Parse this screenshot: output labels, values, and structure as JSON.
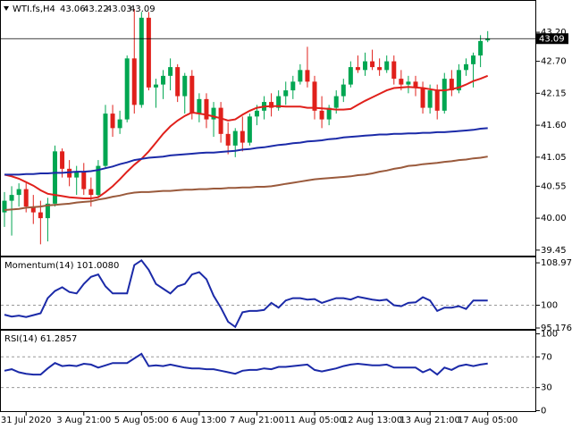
{
  "chart_data": [
    {
      "type": "candlestick",
      "title": "WTI.fs,H4",
      "categories": [
        null,
        null,
        null,
        "31 Jul 2020",
        null,
        null,
        null,
        null,
        null,
        null,
        null,
        "3 Aug 21:00",
        null,
        null,
        null,
        null,
        null,
        null,
        null,
        "5 Aug 05:00",
        null,
        null,
        null,
        null,
        null,
        null,
        null,
        "6 Aug 13:00",
        null,
        null,
        null,
        null,
        null,
        null,
        null,
        "7 Aug 21:00",
        null,
        null,
        null,
        null,
        null,
        null,
        null,
        "11 Aug 05:00",
        null,
        null,
        null,
        null,
        null,
        null,
        null,
        "12 Aug 13:00",
        null,
        null,
        null,
        null,
        null,
        null,
        null,
        "13 Aug 21:00",
        null,
        null,
        null,
        null,
        null,
        null,
        null,
        "17 Aug 05:00"
      ],
      "open": [
        40.1,
        40.3,
        40.4,
        40.5,
        40.2,
        40.1,
        40.0,
        40.25,
        41.15,
        40.85,
        40.7,
        40.8,
        40.5,
        40.4,
        40.9,
        41.8,
        41.55,
        41.7,
        42.75,
        41.95,
        43.45,
        42.25,
        42.3,
        42.45,
        42.6,
        42.1,
        42.45,
        41.8,
        42.05,
        41.7,
        41.9,
        41.45,
        41.25,
        41.5,
        41.3,
        41.75,
        41.85,
        42.0,
        41.9,
        42.1,
        42.2,
        42.35,
        42.55,
        42.35,
        41.85,
        41.7,
        41.9,
        42.1,
        42.3,
        42.6,
        42.55,
        42.7,
        42.6,
        42.55,
        42.7,
        42.4,
        42.3,
        42.35,
        42.25,
        41.9,
        42.2,
        41.85,
        42.4,
        42.2,
        42.55,
        42.65,
        42.8,
        43.06
      ],
      "high": [
        40.45,
        40.55,
        40.6,
        40.6,
        40.4,
        40.3,
        40.35,
        41.25,
        41.2,
        41.0,
        40.9,
        40.95,
        40.7,
        41.0,
        41.95,
        41.95,
        41.85,
        42.8,
        43.6,
        43.55,
        43.55,
        42.4,
        42.55,
        42.75,
        42.65,
        42.5,
        42.55,
        42.15,
        42.15,
        42.0,
        42.0,
        41.65,
        41.55,
        41.75,
        41.8,
        41.95,
        42.1,
        42.15,
        42.2,
        42.35,
        42.45,
        42.65,
        42.95,
        42.45,
        42.1,
        41.95,
        42.2,
        42.4,
        42.7,
        42.8,
        42.85,
        42.9,
        42.75,
        42.8,
        42.8,
        42.55,
        42.45,
        42.45,
        42.35,
        42.3,
        42.3,
        42.5,
        42.55,
        42.65,
        42.75,
        42.85,
        43.15,
        43.22
      ],
      "low": [
        39.85,
        39.7,
        40.2,
        40.1,
        39.9,
        39.55,
        39.6,
        40.2,
        40.7,
        40.55,
        40.4,
        40.4,
        40.2,
        40.35,
        40.85,
        41.4,
        41.45,
        41.65,
        41.8,
        41.9,
        42.2,
        41.9,
        42.05,
        42.2,
        42.0,
        41.8,
        41.7,
        41.65,
        41.55,
        41.4,
        41.3,
        41.1,
        41.05,
        41.15,
        41.25,
        41.6,
        41.7,
        41.75,
        41.85,
        41.95,
        42.05,
        42.3,
        42.25,
        41.7,
        41.55,
        41.6,
        41.8,
        42.0,
        42.25,
        42.5,
        42.45,
        42.55,
        42.45,
        42.5,
        42.3,
        42.2,
        42.15,
        42.1,
        41.8,
        41.8,
        41.7,
        41.8,
        42.1,
        42.15,
        42.45,
        42.25,
        42.6,
        43.03
      ],
      "close": [
        40.3,
        40.4,
        40.5,
        40.2,
        40.1,
        40.0,
        40.25,
        41.15,
        40.85,
        40.7,
        40.8,
        40.5,
        40.4,
        40.9,
        41.8,
        41.55,
        41.7,
        42.75,
        41.95,
        43.45,
        42.25,
        42.3,
        42.45,
        42.6,
        42.1,
        42.45,
        41.8,
        42.05,
        41.7,
        41.9,
        41.45,
        41.25,
        41.5,
        41.3,
        41.75,
        41.85,
        42.0,
        41.9,
        42.1,
        42.2,
        42.35,
        42.55,
        42.35,
        41.85,
        41.7,
        41.9,
        42.1,
        42.3,
        42.6,
        42.55,
        42.7,
        42.6,
        42.55,
        42.7,
        42.4,
        42.3,
        42.35,
        42.25,
        41.9,
        42.2,
        41.85,
        42.4,
        42.2,
        42.55,
        42.65,
        42.8,
        43.05,
        43.09
      ],
      "up_color": "#00a651",
      "down_color": "#e0201b",
      "series": [
        {
          "color": "#e0201b",
          "values": [
            40.75,
            40.72,
            40.68,
            40.62,
            40.56,
            40.48,
            40.42,
            40.4,
            40.38,
            40.36,
            40.35,
            40.34,
            40.34,
            40.36,
            40.45,
            40.55,
            40.67,
            40.8,
            40.92,
            41.02,
            41.15,
            41.3,
            41.45,
            41.58,
            41.68,
            41.76,
            41.82,
            41.8,
            41.78,
            41.75,
            41.72,
            41.68,
            41.7,
            41.78,
            41.85,
            41.9,
            41.92,
            41.93,
            41.93,
            41.92,
            41.92,
            41.92,
            41.9,
            41.9,
            41.89,
            41.88,
            41.87,
            41.87,
            41.88,
            41.95,
            42.02,
            42.08,
            42.14,
            42.2,
            42.24,
            42.25,
            42.26,
            42.25,
            42.24,
            42.22,
            42.2,
            42.2,
            42.22,
            42.25,
            42.3,
            42.36,
            42.4,
            42.45
          ]
        },
        {
          "color": "#1b2aa8",
          "values": [
            40.75,
            40.75,
            40.75,
            40.76,
            40.76,
            40.77,
            40.77,
            40.78,
            40.78,
            40.79,
            40.8,
            40.8,
            40.81,
            40.83,
            40.86,
            40.89,
            40.93,
            40.96,
            41.0,
            41.02,
            41.04,
            41.05,
            41.06,
            41.08,
            41.09,
            41.1,
            41.11,
            41.12,
            41.13,
            41.13,
            41.14,
            41.15,
            41.16,
            41.18,
            41.19,
            41.21,
            41.22,
            41.24,
            41.26,
            41.27,
            41.29,
            41.3,
            41.32,
            41.33,
            41.34,
            41.36,
            41.37,
            41.39,
            41.4,
            41.41,
            41.42,
            41.43,
            41.44,
            41.44,
            41.45,
            41.45,
            41.46,
            41.46,
            41.47,
            41.47,
            41.48,
            41.48,
            41.49,
            41.5,
            41.51,
            41.52,
            41.54,
            41.55
          ]
        },
        {
          "color": "#9a5a3c",
          "values": [
            40.14,
            40.15,
            40.16,
            40.18,
            40.19,
            40.2,
            40.22,
            40.23,
            40.24,
            40.25,
            40.27,
            40.28,
            40.29,
            40.32,
            40.34,
            40.37,
            40.39,
            40.42,
            40.44,
            40.45,
            40.45,
            40.46,
            40.47,
            40.47,
            40.48,
            40.49,
            40.49,
            40.5,
            40.5,
            40.51,
            40.51,
            40.52,
            40.52,
            40.53,
            40.53,
            40.54,
            40.54,
            40.55,
            40.57,
            40.59,
            40.61,
            40.63,
            40.65,
            40.67,
            40.68,
            40.69,
            40.7,
            40.71,
            40.72,
            40.74,
            40.75,
            40.77,
            40.8,
            40.82,
            40.85,
            40.87,
            40.9,
            40.91,
            40.93,
            40.94,
            40.95,
            40.97,
            40.98,
            41.0,
            41.01,
            41.03,
            41.04,
            41.06
          ]
        }
      ],
      "ylim": [
        39.34,
        43.74
      ],
      "yticks": [
        {
          "value": 43.2,
          "label": "43.20"
        },
        {
          "value": 42.7,
          "label": "42.70"
        },
        42.15,
        {
          "value": 41.6,
          "label": "41.60"
        },
        41.05,
        40.55,
        {
          "value": 40.0,
          "label": "40.00"
        },
        39.45
      ]
    },
    {
      "type": "line",
      "title": "Momentum(14) 101.0080",
      "color": "#1b2aa8",
      "values": [
        98.0,
        97.6,
        97.8,
        97.5,
        97.9,
        98.3,
        101.5,
        103.0,
        103.8,
        102.8,
        102.5,
        104.5,
        106.0,
        106.5,
        104.0,
        102.5,
        102.5,
        102.5,
        108.5,
        109.5,
        107.5,
        104.5,
        103.5,
        102.5,
        104.0,
        104.5,
        106.5,
        107.0,
        105.5,
        102.0,
        99.5,
        96.5,
        95.4,
        98.5,
        98.8,
        98.8,
        99.0,
        100.5,
        99.5,
        101.0,
        101.5,
        101.5,
        101.2,
        101.3,
        100.5,
        101.0,
        101.5,
        101.5,
        101.2,
        101.8,
        101.5,
        101.2,
        101.0,
        101.2,
        100.0,
        99.8,
        100.5,
        100.6,
        101.7,
        101.0,
        98.8,
        99.5,
        99.5,
        99.8,
        99.2,
        101.0,
        101.0,
        101.008
      ],
      "ylim": [
        94.8,
        110.12
      ],
      "yticks": [
        108.9707,
        100,
        95.1765
      ],
      "levels": [
        100
      ]
    },
    {
      "type": "line",
      "title": "RSI(14) 61.2857",
      "color": "#1b2aa8",
      "values": [
        52,
        54,
        50,
        48,
        47,
        47,
        55,
        62,
        58,
        59,
        58,
        61,
        60,
        56,
        59,
        62,
        62,
        62,
        68,
        74,
        58,
        59,
        58,
        60,
        58,
        56,
        55,
        55,
        54,
        54,
        52,
        50,
        48,
        52,
        53,
        53,
        55,
        54,
        57,
        57,
        58,
        59,
        60,
        53,
        51,
        53,
        55,
        58,
        60,
        61,
        60,
        59,
        59,
        60,
        56,
        56,
        56,
        56,
        50,
        54,
        47,
        56,
        53,
        58,
        60,
        58,
        60,
        61.2857
      ],
      "ylim": [
        -1.8,
        104.1
      ],
      "yticks": [
        100,
        70,
        30,
        0
      ],
      "levels": [
        70,
        30
      ]
    }
  ]
}
